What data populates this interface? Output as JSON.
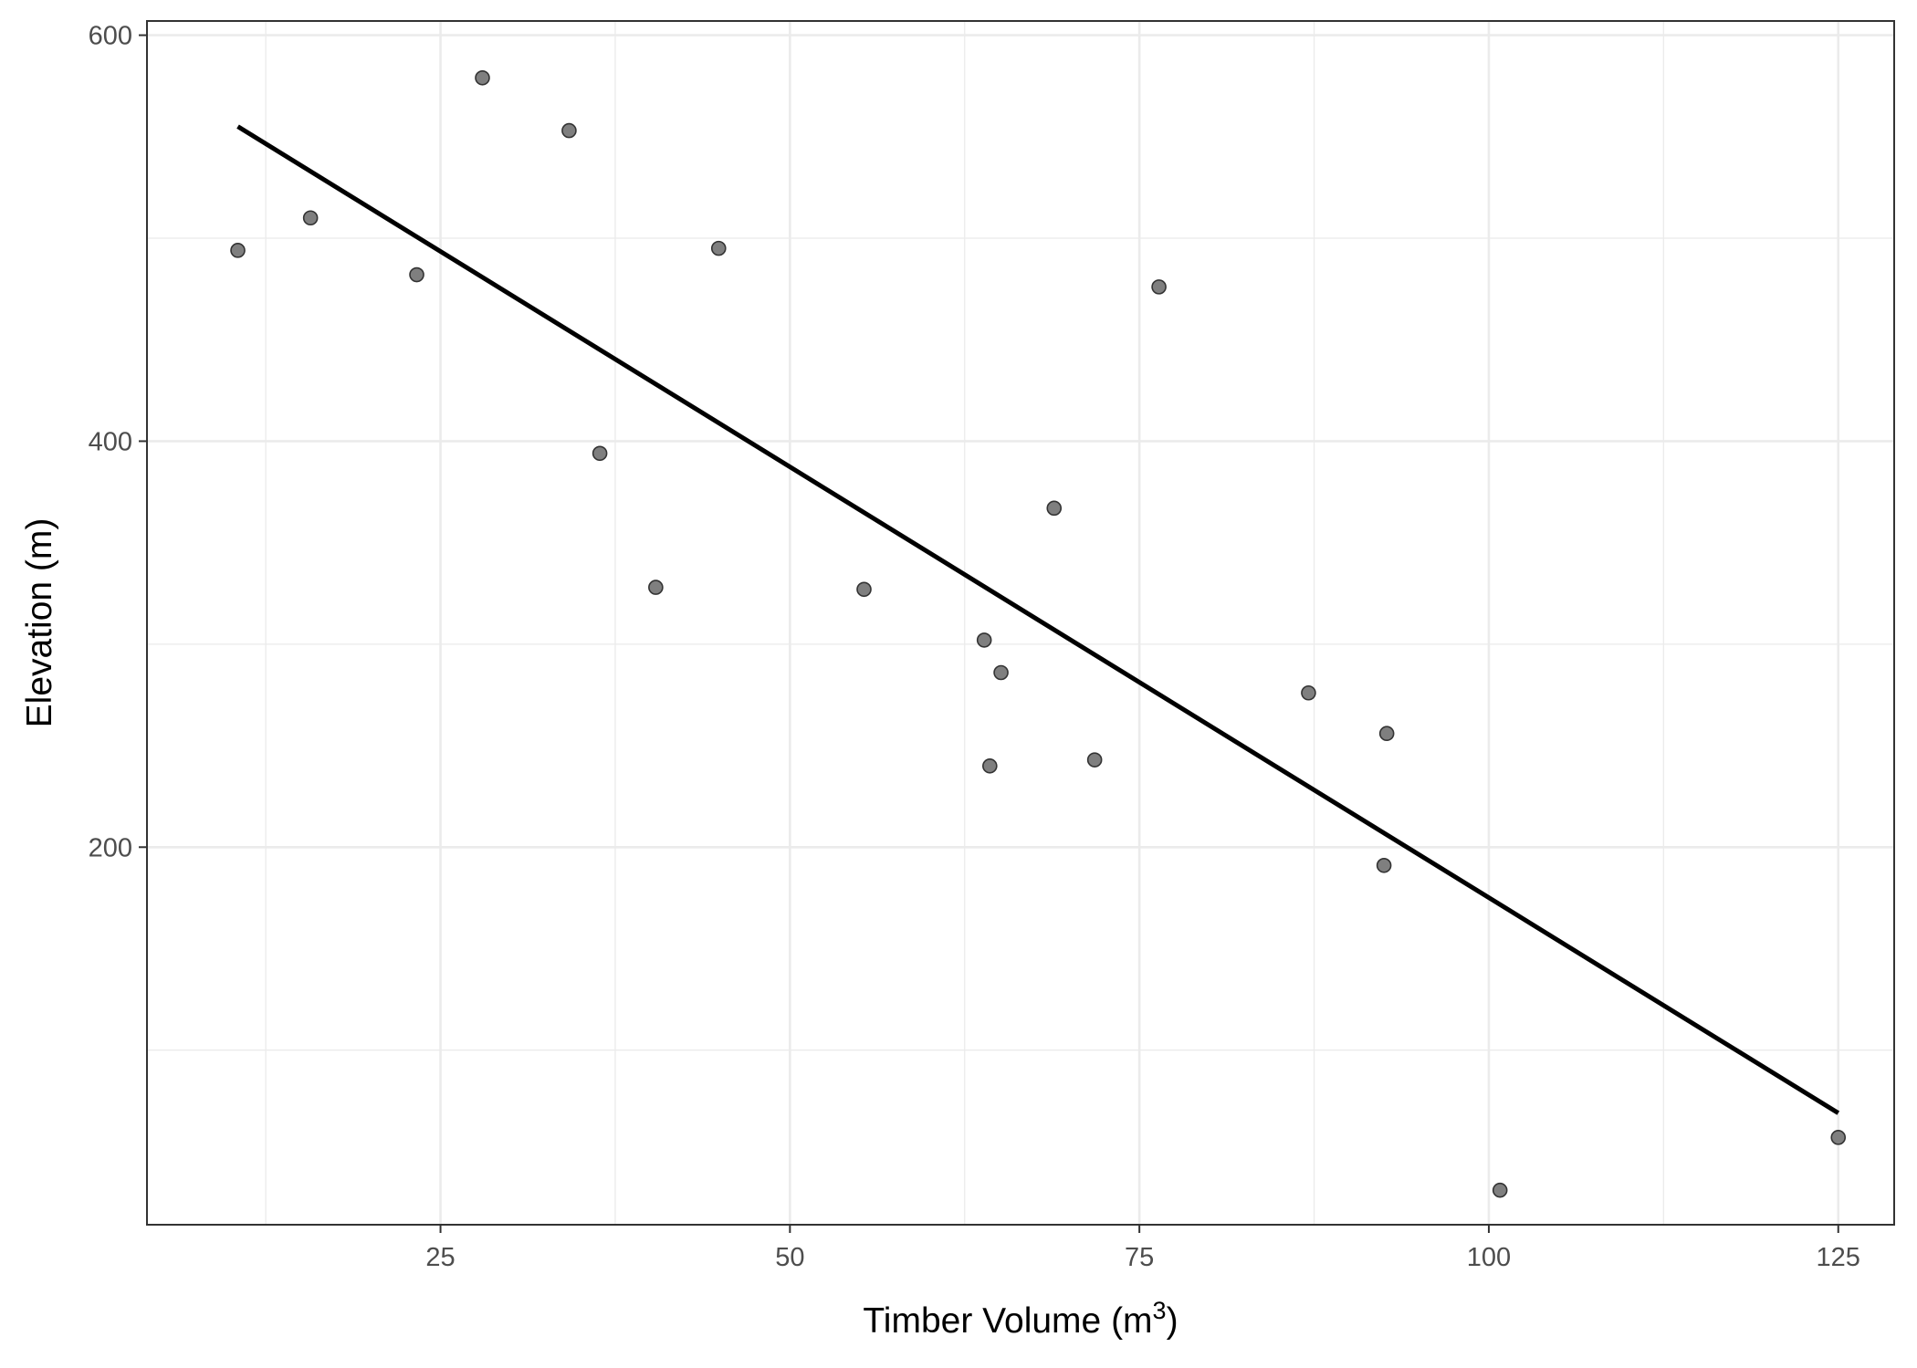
{
  "chart_data": {
    "type": "scatter",
    "title": "",
    "xlabel": "Timber Volume (m",
    "xlabel_superscript": "3",
    "xlabel_close": ")",
    "ylabel": "Elevation (m)",
    "xlim": [
      4,
      129
    ],
    "ylim": [
      14,
      607
    ],
    "x_ticks": [
      25,
      50,
      75,
      100,
      125
    ],
    "y_ticks": [
      200,
      400,
      600
    ],
    "x_tick_labels": [
      "25",
      "50",
      "75",
      "100",
      "125"
    ],
    "y_tick_labels": [
      "200",
      "400",
      "600"
    ],
    "x_minor_ticks": [
      12.5,
      37.5,
      62.5,
      87.5,
      112.5
    ],
    "y_minor_ticks": [
      100,
      300,
      500
    ],
    "grid": true,
    "legend": "none",
    "point_color": "#7f7f7f",
    "line_color": "#000000",
    "points": [
      {
        "x": 10.5,
        "y": 494
      },
      {
        "x": 15.7,
        "y": 510
      },
      {
        "x": 23.3,
        "y": 482
      },
      {
        "x": 28.0,
        "y": 579
      },
      {
        "x": 34.2,
        "y": 553
      },
      {
        "x": 36.4,
        "y": 394
      },
      {
        "x": 40.4,
        "y": 328
      },
      {
        "x": 44.9,
        "y": 495
      },
      {
        "x": 55.3,
        "y": 327
      },
      {
        "x": 63.9,
        "y": 302
      },
      {
        "x": 64.3,
        "y": 240
      },
      {
        "x": 65.1,
        "y": 286
      },
      {
        "x": 68.9,
        "y": 367
      },
      {
        "x": 71.8,
        "y": 243
      },
      {
        "x": 76.4,
        "y": 476
      },
      {
        "x": 87.1,
        "y": 276
      },
      {
        "x": 92.5,
        "y": 191
      },
      {
        "x": 92.7,
        "y": 256
      },
      {
        "x": 100.8,
        "y": 31
      },
      {
        "x": 125.0,
        "y": 57
      }
    ],
    "fit_line": {
      "x": [
        10.5,
        125.0
      ],
      "y": [
        555,
        69
      ]
    }
  }
}
